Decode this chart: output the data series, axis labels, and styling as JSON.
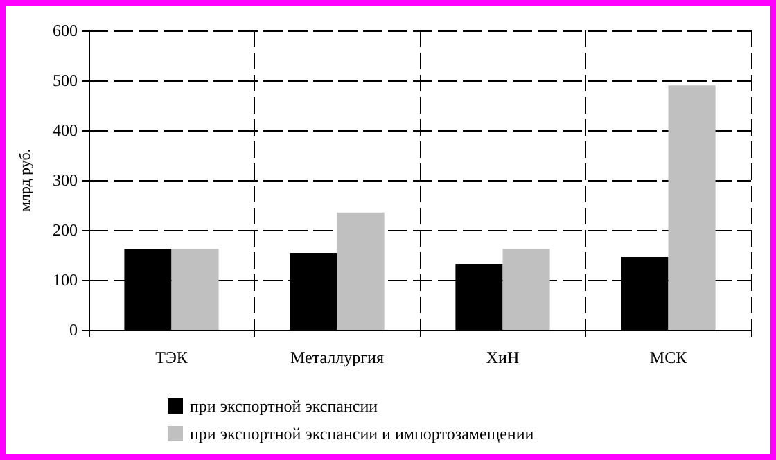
{
  "chart_data": {
    "type": "bar",
    "ylabel": "млрд руб.",
    "categories": [
      "ТЭК",
      "Металлургия",
      "ХиН",
      "МСК"
    ],
    "series": [
      {
        "name": "при экспортной экспансии",
        "color": "#000000",
        "values": [
          162,
          154,
          132,
          146
        ]
      },
      {
        "name": "при экспортной экспансии и импортозамещении",
        "color": "#c0c0c0",
        "values": [
          162,
          235,
          162,
          490
        ]
      }
    ],
    "ylim": [
      0,
      600
    ],
    "yticks": [
      0,
      100,
      200,
      300,
      400,
      500,
      600
    ],
    "grid": true,
    "legend": "bottom"
  }
}
